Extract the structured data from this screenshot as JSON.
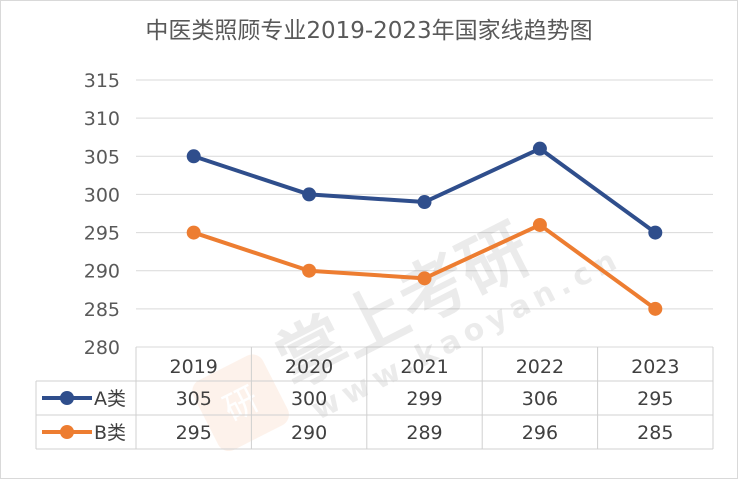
{
  "chart_data": {
    "type": "line",
    "title": "中医类照顾专业2019-2023年国家线趋势图",
    "categories": [
      "2019",
      "2020",
      "2021",
      "2022",
      "2023"
    ],
    "series": [
      {
        "name": "A类",
        "values": [
          305,
          300,
          299,
          306,
          295
        ],
        "color": "#2f4e8c"
      },
      {
        "name": "B类",
        "values": [
          295,
          290,
          289,
          296,
          285
        ],
        "color": "#ed7d31"
      }
    ],
    "ylim": [
      280,
      315
    ],
    "yticks": [
      "280",
      "285",
      "290",
      "295",
      "300",
      "305",
      "310",
      "315"
    ],
    "grid": true,
    "data_table": true
  },
  "watermark": {
    "text": "掌上考研",
    "url": "www.kaoyan.cn",
    "badge": "研"
  }
}
